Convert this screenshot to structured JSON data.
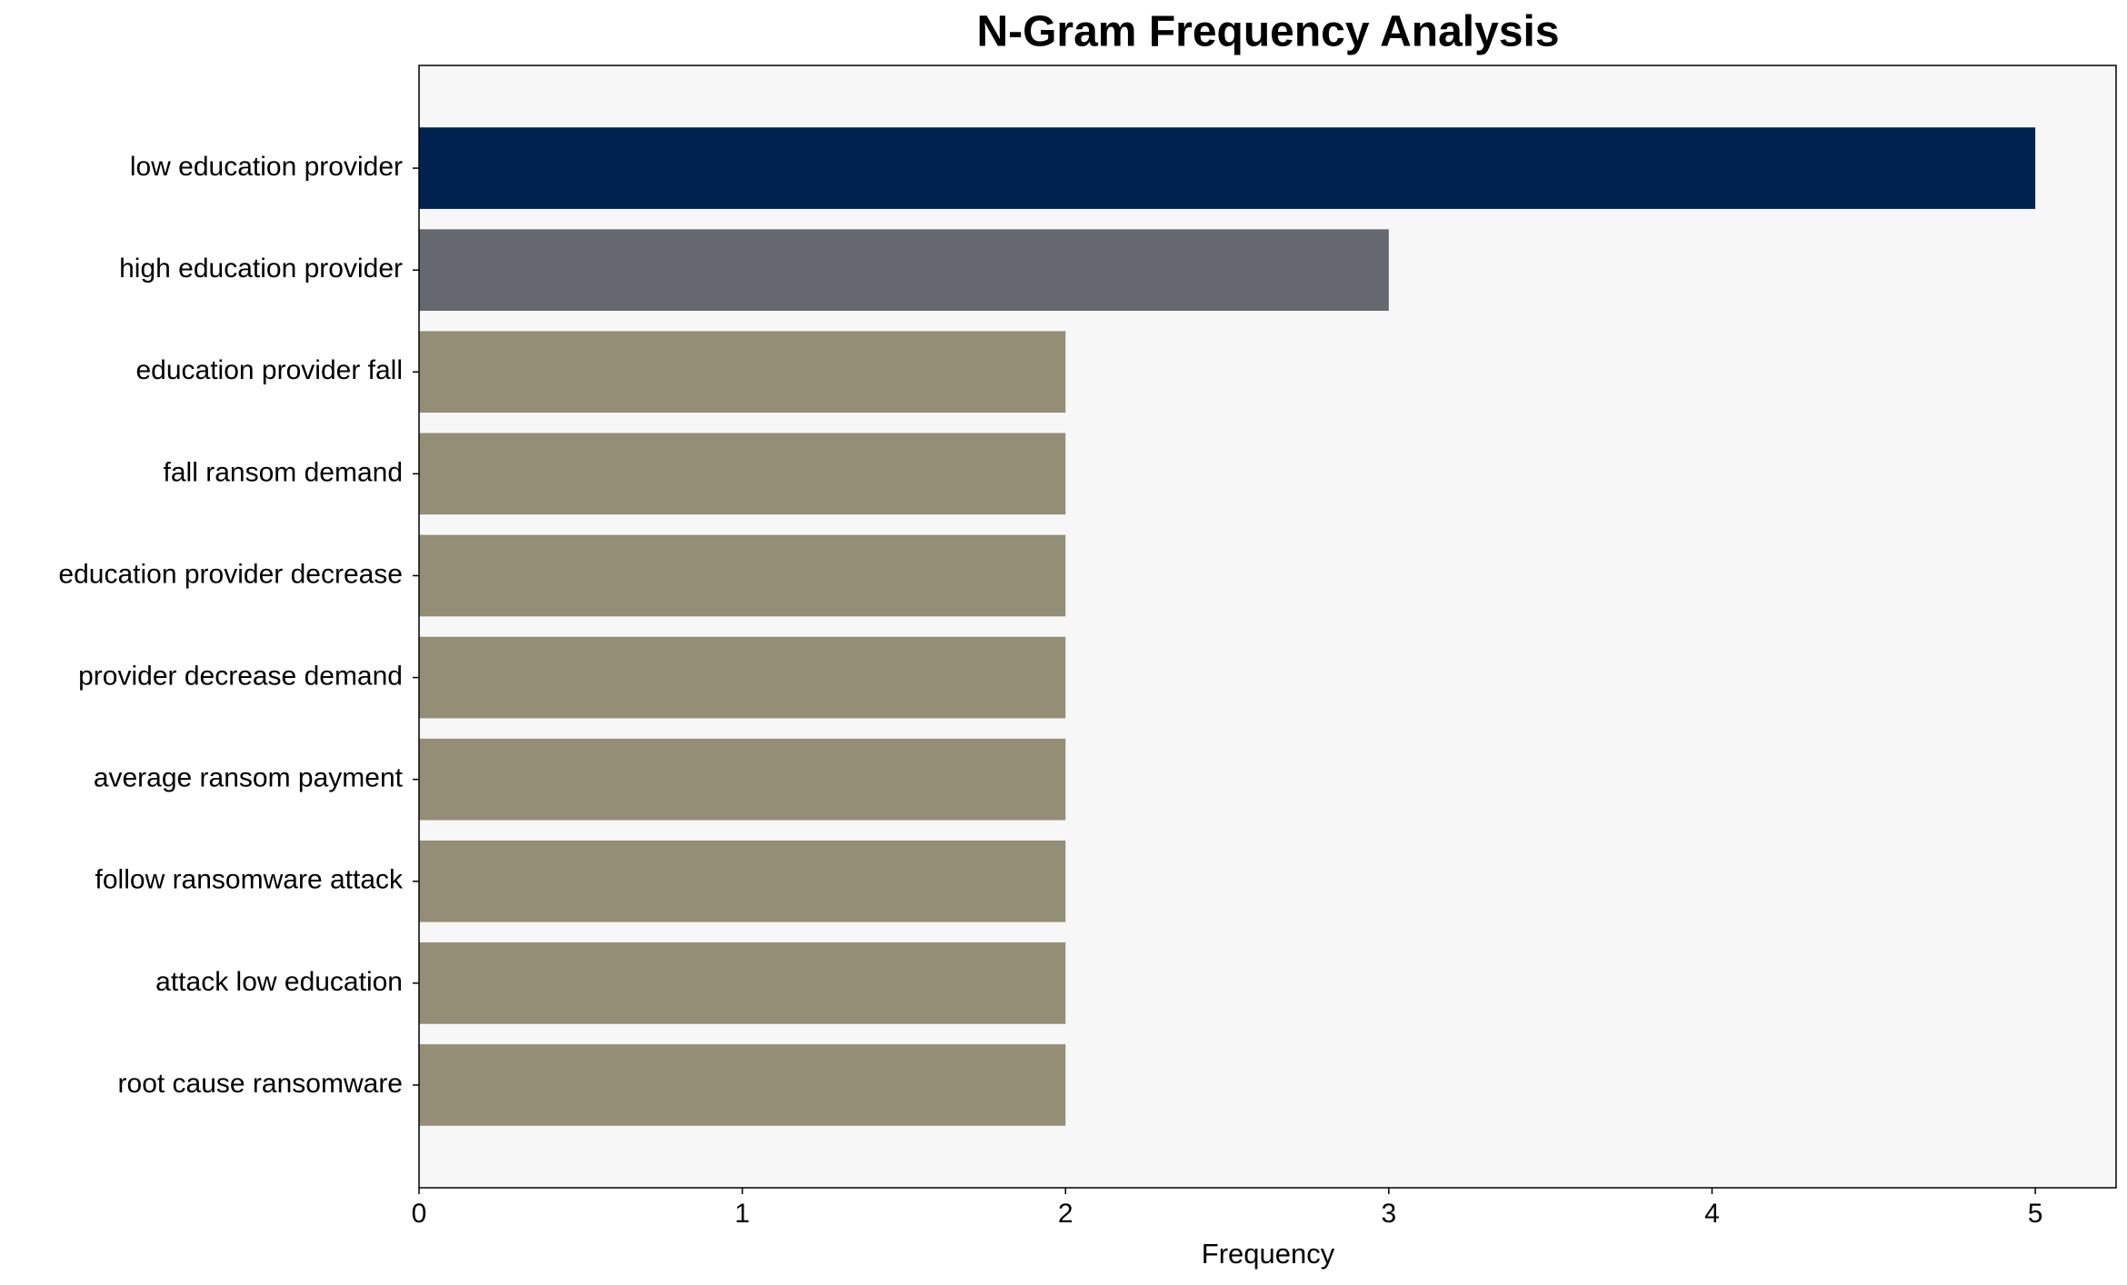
{
  "chart_data": {
    "type": "barh",
    "title": "N-Gram Frequency Analysis",
    "x_label": "Frequency",
    "categories": [
      "low education provider",
      "high education provider",
      "education provider fall",
      "fall ransom demand",
      "education provider decrease",
      "provider decrease demand",
      "average ransom payment",
      "follow ransomware attack",
      "attack low education",
      "root cause ransomware"
    ],
    "values": [
      5,
      3,
      2,
      2,
      2,
      2,
      2,
      2,
      2,
      2
    ],
    "colors": [
      "#00224e",
      "#666870",
      "#948e77",
      "#948e77",
      "#948e77",
      "#948e77",
      "#948e77",
      "#948e77",
      "#948e77",
      "#948e77"
    ],
    "xlim": [
      0,
      5.25
    ],
    "xticks": [
      0,
      1,
      2,
      3,
      4,
      5
    ],
    "grid": false
  }
}
